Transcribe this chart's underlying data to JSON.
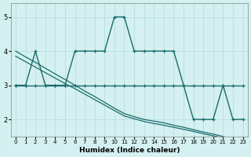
{
  "xlabel": "Humidex (Indice chaleur)",
  "background_color": "#d4f0f0",
  "line_color": "#1a6b6b",
  "grid_color": "#b8dede",
  "hours": [
    0,
    1,
    2,
    3,
    4,
    5,
    6,
    7,
    8,
    9,
    10,
    11,
    12,
    13,
    14,
    15,
    16,
    17,
    18,
    19,
    20,
    21,
    22,
    23
  ],
  "series1": [
    3,
    3,
    4,
    3,
    3,
    3,
    4,
    4,
    4,
    4,
    5,
    5,
    4,
    4,
    4,
    4,
    4,
    3,
    2,
    2,
    2,
    3,
    2,
    2
  ],
  "series2": [
    3,
    3,
    3,
    3,
    3,
    3,
    3,
    3,
    3,
    3,
    3,
    3,
    3,
    3,
    3,
    3,
    3,
    3,
    3,
    3,
    3,
    3,
    3,
    3
  ],
  "diag1": [
    4.0,
    3.83,
    3.67,
    3.5,
    3.33,
    3.17,
    3.0,
    2.83,
    2.67,
    2.5,
    2.33,
    2.17,
    2.08,
    2.0,
    1.95,
    1.9,
    1.83,
    1.77,
    1.7,
    1.63,
    1.57,
    1.5,
    1.43,
    1.37
  ],
  "diag2": [
    3.85,
    3.69,
    3.53,
    3.37,
    3.21,
    3.05,
    2.9,
    2.74,
    2.58,
    2.42,
    2.26,
    2.1,
    2.02,
    1.94,
    1.88,
    1.83,
    1.77,
    1.71,
    1.65,
    1.58,
    1.52,
    1.46,
    1.4,
    1.34
  ],
  "xlim": [
    -0.5,
    23.5
  ],
  "ylim": [
    1.5,
    5.4
  ],
  "yticks": [
    2,
    3,
    4,
    5
  ],
  "xticks": [
    0,
    1,
    2,
    3,
    4,
    5,
    6,
    7,
    8,
    9,
    10,
    11,
    12,
    13,
    14,
    15,
    16,
    17,
    18,
    19,
    20,
    21,
    22,
    23
  ]
}
